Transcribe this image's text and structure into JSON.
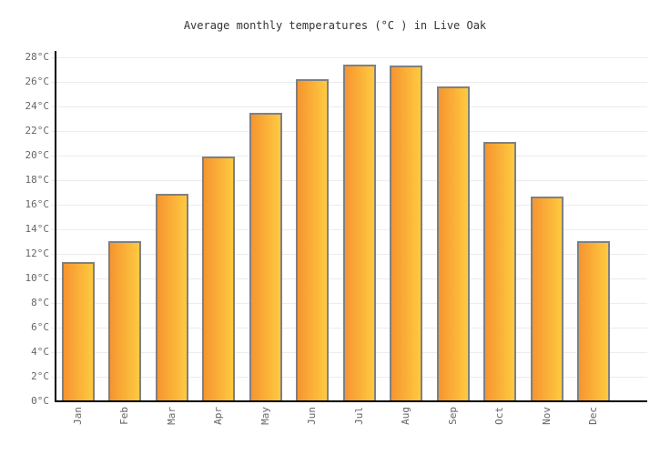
{
  "title": "Average monthly temperatures (°C ) in Live Oak",
  "colors": {
    "background": "#FFFFFF",
    "title": "#333333",
    "axis": "#000000",
    "grid": "#ECECEC",
    "label": "#666666",
    "bar_border": "#808080",
    "bar_gradient_left": "#F69530",
    "bar_gradient_right": "#FECA40"
  },
  "chart_data": {
    "type": "bar",
    "title": "Average monthly temperatures (°C ) in Live Oak",
    "categories": [
      "Jan",
      "Feb",
      "Mar",
      "Apr",
      "May",
      "Jun",
      "Jul",
      "Aug",
      "Sep",
      "Oct",
      "Nov",
      "Dec"
    ],
    "values": [
      11.3,
      13.0,
      16.9,
      19.9,
      23.5,
      26.2,
      27.4,
      27.3,
      25.6,
      21.1,
      16.7,
      13.0
    ],
    "xlabel": "",
    "ylabel": "",
    "ylim": [
      0,
      28
    ],
    "grid": true,
    "legend": false,
    "y_ticks": [
      {
        "value": 0,
        "label": "0°C"
      },
      {
        "value": 2,
        "label": "2°C"
      },
      {
        "value": 4,
        "label": "4°C"
      },
      {
        "value": 6,
        "label": "6°C"
      },
      {
        "value": 8,
        "label": "8°C"
      },
      {
        "value": 10,
        "label": "10°C"
      },
      {
        "value": 12,
        "label": "12°C"
      },
      {
        "value": 14,
        "label": "14°C"
      },
      {
        "value": 16,
        "label": "16°C"
      },
      {
        "value": 18,
        "label": "18°C"
      },
      {
        "value": 20,
        "label": "20°C"
      },
      {
        "value": 22,
        "label": "22°C"
      },
      {
        "value": 24,
        "label": "24°C"
      },
      {
        "value": 26,
        "label": "26°C"
      },
      {
        "value": 28,
        "label": "28°C"
      }
    ]
  }
}
